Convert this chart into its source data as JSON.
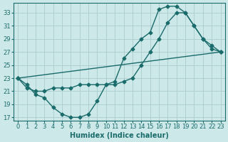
{
  "background_color": "#cde8e8",
  "grid_color": "#aacccc",
  "line_color": "#1a6b6b",
  "marker": "D",
  "markersize": 2.5,
  "linewidth": 1.0,
  "xlabel": "Humidex (Indice chaleur)",
  "xlabel_fontsize": 7,
  "tick_fontsize": 6,
  "xlim": [
    -0.5,
    23.5
  ],
  "ylim": [
    16.5,
    34.5
  ],
  "yticks": [
    17,
    19,
    21,
    23,
    25,
    27,
    29,
    31,
    33
  ],
  "xticks": [
    0,
    1,
    2,
    3,
    4,
    5,
    6,
    7,
    8,
    9,
    10,
    11,
    12,
    13,
    14,
    15,
    16,
    17,
    18,
    19,
    20,
    21,
    22,
    23
  ],
  "line1_x": [
    0,
    1,
    2,
    3,
    4,
    5,
    6,
    7,
    8,
    9,
    10,
    11,
    12,
    13,
    14,
    15,
    16,
    17,
    18,
    19,
    20,
    21,
    22,
    23
  ],
  "line1_y": [
    23.0,
    22.0,
    20.5,
    20.0,
    18.5,
    17.5,
    17.0,
    17.0,
    17.5,
    19.5,
    22.0,
    22.5,
    26.0,
    27.5,
    29.0,
    30.0,
    33.5,
    34.0,
    34.0,
    33.0,
    31.0,
    29.0,
    27.5,
    27.0
  ],
  "line2_x": [
    0,
    1,
    2,
    3,
    4,
    5,
    6,
    7,
    8,
    9,
    10,
    11,
    12,
    13,
    14,
    15,
    16,
    17,
    18,
    19,
    20,
    21,
    22,
    23
  ],
  "line2_y": [
    23.0,
    21.5,
    21.0,
    21.0,
    21.5,
    21.5,
    21.5,
    22.0,
    22.0,
    22.0,
    22.0,
    22.0,
    22.5,
    23.0,
    25.0,
    27.0,
    29.0,
    31.5,
    33.0,
    33.0,
    31.0,
    29.0,
    28.0,
    27.0
  ],
  "line3_x": [
    0,
    23
  ],
  "line3_y": [
    23.0,
    27.0
  ]
}
